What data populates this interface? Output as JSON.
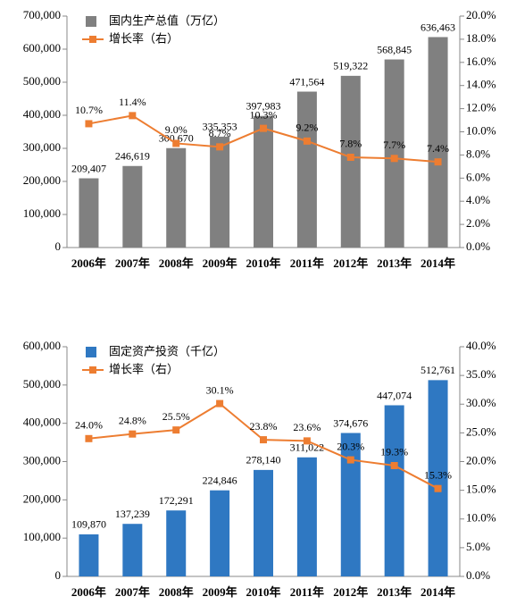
{
  "chart_data": [
    {
      "type": "bar",
      "categories": [
        "2006年",
        "2007年",
        "2008年",
        "2009年",
        "2010年",
        "2011年",
        "2012年",
        "2013年",
        "2014年"
      ],
      "series": [
        {
          "name": "国内生产总值（万亿）",
          "color": "#808080",
          "values": [
            209407,
            246619,
            300670,
            335353,
            397983,
            471564,
            519322,
            568845,
            636463
          ],
          "value_labels": [
            "209,407",
            "246,619",
            "300,670",
            "335,353",
            "397,983",
            "471,564",
            "519,322",
            "568,845",
            "636,463"
          ]
        },
        {
          "name": "增长率（右）",
          "color": "#ed7d31",
          "axis": "y2",
          "values": [
            10.7,
            11.4,
            9,
            8.7,
            10.3,
            9.2,
            7.8,
            7.7,
            7.4
          ],
          "value_labels": [
            "10.7%",
            "11.4%",
            "9.0%",
            "8.7%",
            "10.3%",
            "9.2%",
            "7.8%",
            "7.7%",
            "7.4%"
          ]
        }
      ],
      "ylim": [
        0,
        700000
      ],
      "yticks": [
        0,
        {
          "value": 100000,
          "label": "100,000"
        },
        {
          "value": 200000,
          "label": "200,000"
        },
        {
          "value": 300000,
          "label": "300,000"
        },
        {
          "value": 400000,
          "label": "400,000"
        },
        {
          "value": 500000,
          "label": "500,000"
        },
        {
          "value": 600000,
          "label": "600,000"
        },
        {
          "value": 700000,
          "label": "700,000"
        }
      ],
      "y2lim": [
        0,
        20
      ],
      "y2ticks": [
        {
          "value": 0,
          "label": "0.0%"
        },
        {
          "value": 2,
          "label": "2.0%"
        },
        {
          "value": 4,
          "label": "4.0%"
        },
        {
          "value": 6,
          "label": "6.0%"
        },
        {
          "value": 8,
          "label": "8.0%"
        },
        {
          "value": 10,
          "label": "10.0%"
        },
        {
          "value": 12,
          "label": "12.0%"
        },
        {
          "value": 14,
          "label": "14.0%"
        },
        {
          "value": 16,
          "label": "16.0%"
        },
        {
          "value": 18,
          "label": "18.0%"
        },
        {
          "value": 20,
          "label": "20.0%"
        }
      ]
    },
    {
      "type": "bar",
      "categories": [
        "2006年",
        "2007年",
        "2008年",
        "2009年",
        "2010年",
        "2011年",
        "2012年",
        "2013年",
        "2014年"
      ],
      "series": [
        {
          "name": "固定资产投资（千亿）",
          "color": "#2f78c2",
          "values": [
            109870,
            137239,
            172291,
            224846,
            278140,
            311022,
            374676,
            447074,
            512761
          ],
          "value_labels": [
            "109,870",
            "137,239",
            "172,291",
            "224,846",
            "278,140",
            "311,022",
            "374,676",
            "447,074",
            "512,761"
          ]
        },
        {
          "name": "增长率（右）",
          "color": "#ed7d31",
          "axis": "y2",
          "values": [
            24,
            24.8,
            25.5,
            30.1,
            23.8,
            23.6,
            20.3,
            19.3,
            15.3
          ],
          "value_labels": [
            "24.0%",
            "24.8%",
            "25.5%",
            "30.1%",
            "23.8%",
            "23.6%",
            "20.3%",
            "19.3%",
            "15.3%"
          ]
        }
      ],
      "ylim": [
        0,
        600000
      ],
      "yticks": [
        0,
        {
          "value": 100000,
          "label": "100,000"
        },
        {
          "value": 200000,
          "label": "200,000"
        },
        {
          "value": 300000,
          "label": "300,000"
        },
        {
          "value": 400000,
          "label": "400,000"
        },
        {
          "value": 500000,
          "label": "500,000"
        },
        {
          "value": 600000,
          "label": "600,000"
        }
      ],
      "y2lim": [
        0,
        40
      ],
      "y2ticks": [
        {
          "value": 0,
          "label": "0.0%"
        },
        {
          "value": 5,
          "label": "5.0%"
        },
        {
          "value": 10,
          "label": "10.0%"
        },
        {
          "value": 15,
          "label": "15.0%"
        },
        {
          "value": 20,
          "label": "20.0%"
        },
        {
          "value": 25,
          "label": "25.0%"
        },
        {
          "value": 30,
          "label": "30.0%"
        },
        {
          "value": 35,
          "label": "35.0%"
        },
        {
          "value": 40,
          "label": "40.0%"
        }
      ]
    }
  ]
}
